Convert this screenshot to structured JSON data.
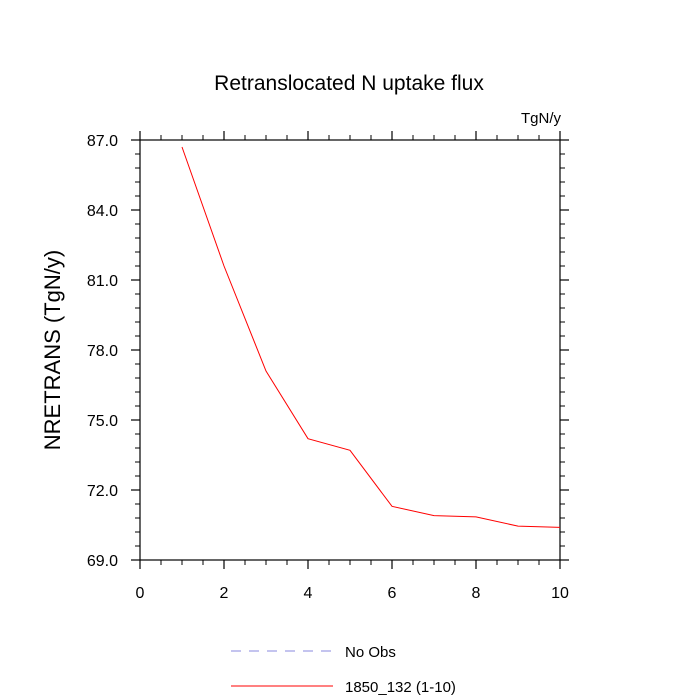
{
  "chart_data": {
    "type": "line",
    "title": "Retranslocated N uptake flux",
    "units_label": "TgN/y",
    "ylabel": "NRETRANS  (TgN/y)",
    "xlabel": "",
    "xlim": [
      0,
      10
    ],
    "ylim": [
      69.0,
      87.0
    ],
    "x_ticks": [
      0,
      2,
      4,
      6,
      8,
      10
    ],
    "x_tick_labels": [
      "0",
      "2",
      "4",
      "6",
      "8",
      "10"
    ],
    "y_ticks": [
      69.0,
      72.0,
      75.0,
      78.0,
      81.0,
      84.0,
      87.0
    ],
    "y_tick_labels": [
      "69.0",
      "72.0",
      "75.0",
      "78.0",
      "81.0",
      "84.0",
      "87.0"
    ],
    "grid": false,
    "legend_position": "bottom",
    "series": [
      {
        "name": "No Obs",
        "color": "#8a8adf",
        "dash": true,
        "x": [],
        "y": []
      },
      {
        "name": "1850_132 (1-10)",
        "color": "#ff0000",
        "dash": false,
        "x": [
          1,
          2,
          3,
          4,
          5,
          6,
          7,
          8,
          9,
          10
        ],
        "y": [
          86.7,
          81.6,
          77.1,
          74.2,
          73.7,
          71.3,
          70.9,
          70.85,
          70.45,
          70.4
        ]
      }
    ]
  }
}
